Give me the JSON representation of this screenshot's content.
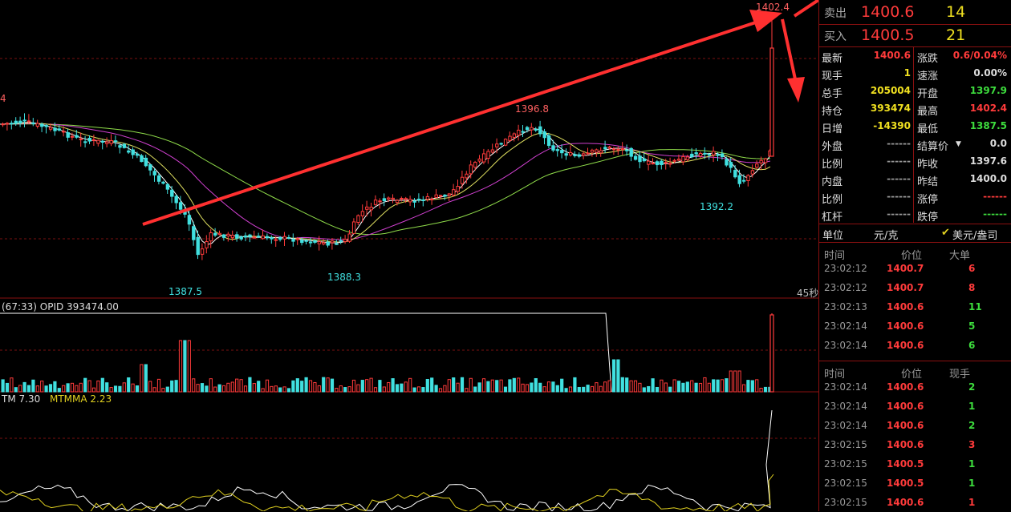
{
  "chart": {
    "labels": {
      "peak": "1402.4",
      "high_mid": "1396.8",
      "low_left": "1387.5",
      "low_mid": "1388.3",
      "low_right": "1392.2",
      "left_edge": "4",
      "timer": "45秒"
    },
    "opi_label": "(67:33)   OPID 393474.00",
    "mtm_label": "TM 7.30",
    "mtmma_label": "MTMMA 2.23"
  },
  "quote": {
    "ask_label": "卖出",
    "ask_price": "1400.6",
    "ask_vol": "14",
    "bid_label": "买入",
    "bid_price": "1400.5",
    "bid_vol": "21",
    "stats": [
      {
        "l": "最新",
        "v": "1400.6",
        "vc": "red",
        "l2": "涨跌",
        "v2": "0.6/0.04%",
        "v2c": "red"
      },
      {
        "l": "现手",
        "v": "1",
        "vc": "yellow",
        "l2": "速涨",
        "v2": "0.00%",
        "v2c": "white"
      },
      {
        "l": "总手",
        "v": "205004",
        "vc": "yellow",
        "l2": "开盘",
        "v2": "1397.9",
        "v2c": "green"
      },
      {
        "l": "持仓",
        "v": "393474",
        "vc": "yellow",
        "l2": "最高",
        "v2": "1402.4",
        "v2c": "red"
      },
      {
        "l": "日增",
        "v": "-14390",
        "vc": "yellow",
        "l2": "最低",
        "v2": "1387.5",
        "v2c": "green"
      },
      {
        "l": "外盘",
        "v": "------",
        "vc": "gray",
        "l2": "结算价",
        "v2": "0.0",
        "v2c": "white"
      },
      {
        "l": "比例",
        "v": "------",
        "vc": "gray",
        "l2": "昨收",
        "v2": "1397.6",
        "v2c": "white"
      },
      {
        "l": "内盘",
        "v": "------",
        "vc": "gray",
        "l2": "昨结",
        "v2": "1400.0",
        "v2c": "white"
      },
      {
        "l": "比例",
        "v": "------",
        "vc": "gray",
        "l2": "涨停",
        "v2": "------",
        "v2c": "red"
      },
      {
        "l": "杠杆",
        "v": "------",
        "vc": "gray",
        "l2": "跌停",
        "v2": "------",
        "v2c": "green"
      }
    ],
    "unit_label": "单位",
    "unit_value": "元/克",
    "currency_option": "美元/盎司"
  },
  "trades_big": {
    "headers": [
      "时间",
      "价位",
      "大单"
    ],
    "rows": [
      {
        "t": "23:02:12",
        "p": "1400.7",
        "v": "6",
        "vc": "red"
      },
      {
        "t": "23:02:12",
        "p": "1400.7",
        "v": "8",
        "vc": "red"
      },
      {
        "t": "23:02:13",
        "p": "1400.6",
        "v": "11",
        "vc": "green"
      },
      {
        "t": "23:02:14",
        "p": "1400.6",
        "v": "5",
        "vc": "green"
      },
      {
        "t": "23:02:14",
        "p": "1400.6",
        "v": "6",
        "vc": "green"
      }
    ]
  },
  "trades_ticks": {
    "headers": [
      "时间",
      "价位",
      "现手"
    ],
    "rows": [
      {
        "t": "23:02:14",
        "p": "1400.6",
        "v": "2",
        "vc": "green"
      },
      {
        "t": "23:02:14",
        "p": "1400.6",
        "v": "1",
        "vc": "green"
      },
      {
        "t": "23:02:14",
        "p": "1400.6",
        "v": "2",
        "vc": "green"
      },
      {
        "t": "23:02:15",
        "p": "1400.6",
        "v": "3",
        "vc": "red"
      },
      {
        "t": "23:02:15",
        "p": "1400.5",
        "v": "1",
        "vc": "green"
      },
      {
        "t": "23:02:15",
        "p": "1400.5",
        "v": "1",
        "vc": "green"
      },
      {
        "t": "23:02:15",
        "p": "1400.6",
        "v": "1",
        "vc": "red"
      }
    ]
  },
  "colors": {
    "up": "#ff3b3b",
    "down": "#40e0e0",
    "grid": "#7a0f0f",
    "arrow": "#ff3030"
  }
}
